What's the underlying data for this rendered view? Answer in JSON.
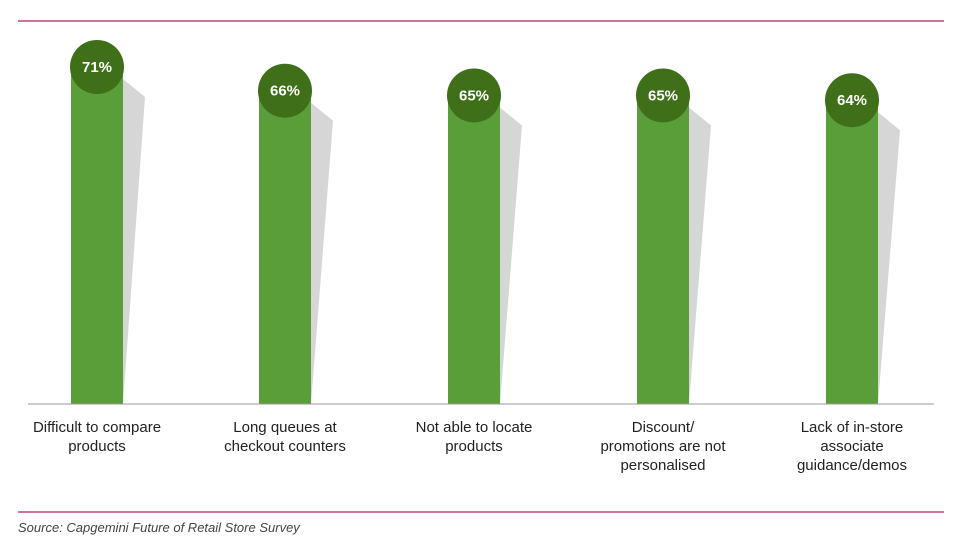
{
  "chart_data": {
    "type": "bar",
    "categories": [
      [
        "Difficult to compare",
        "products"
      ],
      [
        "Long queues at",
        "checkout counters"
      ],
      [
        "Not able to locate",
        "products"
      ],
      [
        "Discount/",
        "promotions are not",
        "personalised"
      ],
      [
        "Lack of in-store",
        "associate",
        "guidance/demos"
      ]
    ],
    "values": [
      71,
      66,
      65,
      65,
      64
    ],
    "value_labels": [
      "71%",
      "66%",
      "65%",
      "65%",
      "64%"
    ],
    "ylim": [
      0,
      75
    ],
    "grid": false,
    "title": "",
    "xlabel": "",
    "ylabel": ""
  },
  "source": "Source: Capgemini Future of Retail Store Survey",
  "colors": {
    "bar": "#5a9e3a",
    "bubble": "#3f6f18",
    "bubble_text": "#ffffff",
    "rule": "#c0427a",
    "axis": "#999999",
    "shadow": "#d6d6d6",
    "label": "#222222"
  }
}
